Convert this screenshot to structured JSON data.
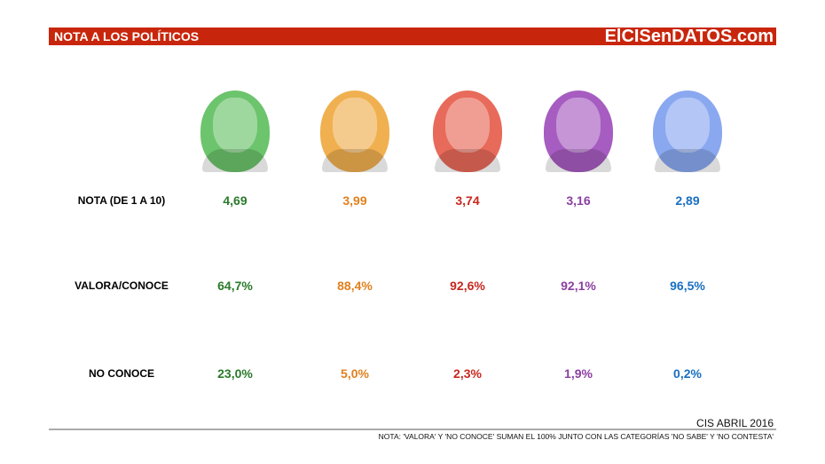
{
  "header": {
    "title": "NOTA A LOS POLÍTICOS",
    "brand": "ElCISenDATOS.com",
    "color": "#c8260c"
  },
  "rows": [
    "NOTA (DE 1 A 10)",
    "VALORA/CONOCE",
    "NO CONOCE"
  ],
  "politicians": [
    {
      "color": "#2a7a2a",
      "avatar": "#6cc46c",
      "values": [
        "4,69",
        "64,7%",
        "23,0%"
      ]
    },
    {
      "color": "#e0801e",
      "avatar": "#f0b050",
      "values": [
        "3,99",
        "88,4%",
        "5,0%"
      ]
    },
    {
      "color": "#c8281e",
      "avatar": "#e86a5a",
      "values": [
        "3,74",
        "92,6%",
        "2,3%"
      ]
    },
    {
      "color": "#8a3fa0",
      "avatar": "#a65cc0",
      "values": [
        "3,16",
        "92,1%",
        "1,9%"
      ]
    },
    {
      "color": "#1a6fc0",
      "avatar": "#8aa8f0",
      "values": [
        "2,89",
        "96,5%",
        "0,2%"
      ]
    }
  ],
  "footer": {
    "source": "CIS ABRIL 2016",
    "note": "NOTA: 'VALORA' Y 'NO CONOCE' SUMAN EL 100% JUNTO CON LAS CATEGORÍAS 'NO SABE' Y 'NO CONTESTA'"
  }
}
